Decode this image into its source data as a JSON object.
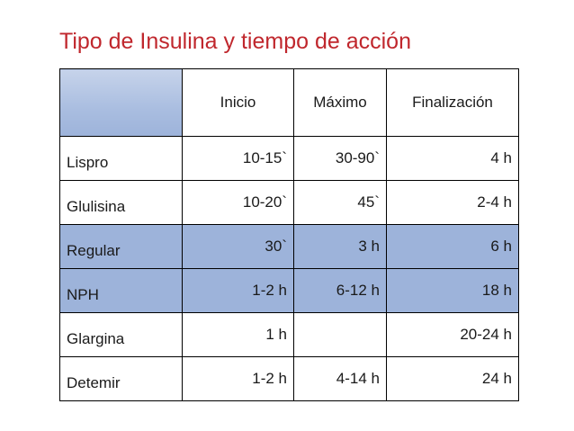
{
  "title": "Tipo de Insulina y tiempo de acción",
  "colors": {
    "title": "#c0272d",
    "shaded_row": "#9db3da",
    "header_corner": "#a9bde0"
  },
  "table": {
    "headers": [
      "",
      "Inicio",
      "Máximo",
      "Finalización"
    ],
    "rows": [
      {
        "name": "Lispro",
        "inicio": "10-15`",
        "maximo": "30-90`",
        "fin": "4 h",
        "shaded": false
      },
      {
        "name": "Glulisina",
        "inicio": "10-20`",
        "maximo": "45`",
        "fin": "2-4 h",
        "shaded": false
      },
      {
        "name": "Regular",
        "inicio": "30`",
        "maximo": "3 h",
        "fin": "6 h",
        "shaded": true
      },
      {
        "name": "NPH",
        "inicio": "1-2 h",
        "maximo": "6-12 h",
        "fin": "18 h",
        "shaded": true
      },
      {
        "name": "Glargina",
        "inicio": "1 h",
        "maximo": "",
        "fin": "20-24 h",
        "shaded": false
      },
      {
        "name": "Detemir",
        "inicio": "1-2 h",
        "maximo": "4-14 h",
        "fin": "24 h",
        "shaded": false
      }
    ]
  }
}
